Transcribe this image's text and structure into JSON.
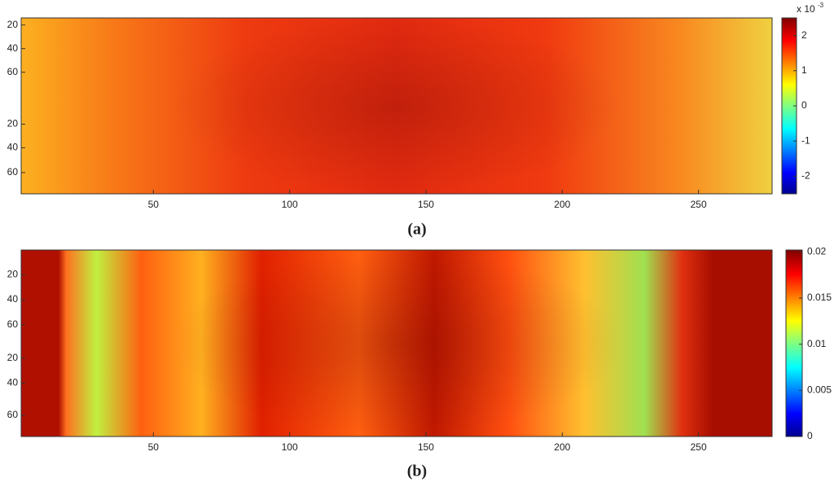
{
  "chart_data": [
    {
      "type": "heatmap",
      "label": "(a)",
      "xlim": [
        1.5,
        277
      ],
      "xticks": [
        50,
        100,
        150,
        200,
        250
      ],
      "ylim": [
        14,
        163
      ],
      "yticks": [
        20,
        40,
        60,
        {
          "value": 104,
          "label": "20"
        },
        {
          "value": 124,
          "label": "40"
        },
        {
          "value": 145,
          "label": "60"
        }
      ],
      "colorbar": {
        "clim": [
          -2.5,
          2.5
        ],
        "ticks": [
          -2,
          -1,
          0,
          1,
          2
        ],
        "scale_label": {
          "base": "x 10",
          "exponent": "-3"
        }
      },
      "colormap": "jet"
    },
    {
      "type": "heatmap",
      "label": "(b)",
      "xlim": [
        1.5,
        277
      ],
      "xticks": [
        50,
        100,
        150,
        200,
        250
      ],
      "ylim": [
        0,
        150
      ],
      "yticks": [
        20,
        40,
        60,
        {
          "value": 87,
          "label": "20"
        },
        {
          "value": 107,
          "label": "40"
        },
        {
          "value": 133,
          "label": "60"
        }
      ],
      "colorbar": {
        "clim": [
          0,
          0.0202
        ],
        "ticks": [
          0,
          0.005,
          0.01,
          0.015,
          0.02
        ]
      },
      "colormap": "jet"
    }
  ]
}
